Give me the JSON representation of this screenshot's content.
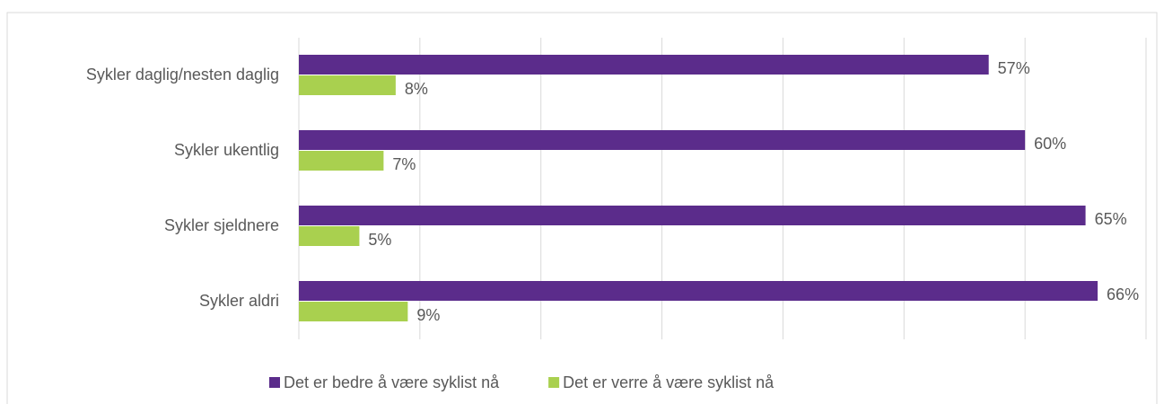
{
  "chart_data": {
    "type": "bar",
    "orientation": "horizontal",
    "categories": [
      "Sykler daglig/nesten daglig",
      "Sykler ukentlig",
      "Sykler sjeldnere",
      "Sykler aldri"
    ],
    "series": [
      {
        "name": "Det er bedre å være syklist nå",
        "color": "#5b2c8b",
        "values": [
          57,
          60,
          65,
          66
        ],
        "value_labels": [
          "57%",
          "60%",
          "65%",
          "66%"
        ]
      },
      {
        "name": "Det er verre å være syklist nå",
        "color": "#a9d04f",
        "values": [
          8,
          7,
          5,
          9
        ],
        "value_labels": [
          "8%",
          "7%",
          "5%",
          "9%"
        ]
      }
    ],
    "xlim": [
      0,
      70
    ],
    "xticks": [
      0,
      10,
      20,
      30,
      40,
      50,
      60,
      70
    ],
    "grid": true,
    "legend": "bottom"
  }
}
